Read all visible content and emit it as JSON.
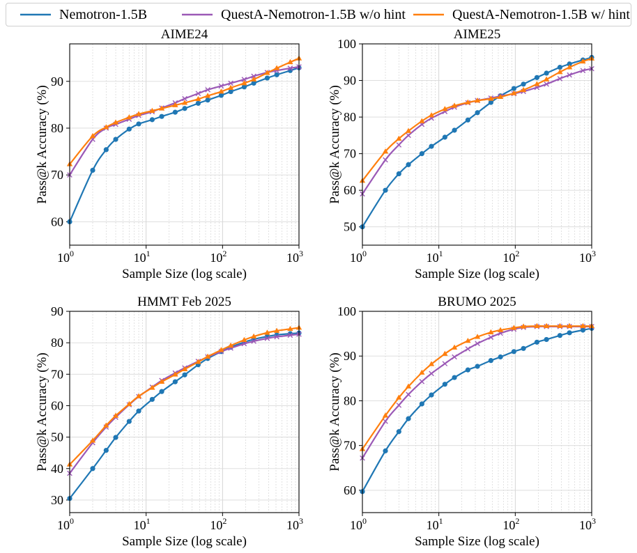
{
  "legend": [
    {
      "name": "Nemotron-1.5B",
      "color": "#1f77b4",
      "marker": "circle"
    },
    {
      "name": "QuestA-Nemotron-1.5B w/o hint",
      "color": "#9b59b6",
      "marker": "x"
    },
    {
      "name": "QuestA-Nemotron-1.5B w/ hint",
      "color": "#ff7f0e",
      "marker": "triangle"
    }
  ],
  "chart_data": [
    {
      "type": "line",
      "title": "AIME24",
      "xlabel": "Sample Size (log scale)",
      "ylabel": "Pass@k Accuracy (%)",
      "xscale": "log",
      "xlim": [
        1,
        1000
      ],
      "ylim": [
        55,
        98
      ],
      "yticks": [
        60,
        70,
        80,
        90
      ],
      "x": [
        1,
        2,
        3,
        4,
        6,
        8,
        12,
        16,
        24,
        32,
        48,
        64,
        96,
        128,
        192,
        256,
        384,
        512,
        768,
        1000
      ],
      "series": [
        {
          "name": "Nemotron-1.5B",
          "values": [
            60.0,
            71.0,
            75.4,
            77.6,
            79.8,
            80.9,
            81.8,
            82.5,
            83.4,
            84.2,
            85.3,
            86.0,
            87.0,
            87.8,
            88.8,
            89.6,
            90.7,
            91.4,
            92.3,
            92.9
          ]
        },
        {
          "name": "QuestA-Nemotron-1.5B w/o hint",
          "values": [
            70.0,
            77.6,
            80.0,
            80.8,
            81.9,
            82.7,
            83.5,
            84.3,
            85.4,
            86.3,
            87.4,
            88.2,
            89.0,
            89.6,
            90.4,
            91.1,
            91.9,
            92.3,
            92.8,
            93.1
          ]
        },
        {
          "name": "QuestA-Nemotron-1.5B w/ hint",
          "values": [
            72.3,
            78.3,
            80.2,
            81.2,
            82.3,
            83.0,
            83.7,
            84.2,
            84.9,
            85.4,
            86.2,
            86.9,
            87.8,
            88.6,
            89.6,
            90.4,
            91.8,
            92.8,
            94.1,
            94.9
          ]
        }
      ]
    },
    {
      "type": "line",
      "title": "AIME25",
      "xlabel": "Sample Size (log scale)",
      "ylabel": "Pass@k Accuracy (%)",
      "xscale": "log",
      "xlim": [
        1,
        1000
      ],
      "ylim": [
        45,
        100
      ],
      "yticks": [
        50,
        60,
        70,
        80,
        90,
        100
      ],
      "x": [
        1,
        2,
        3,
        4,
        6,
        8,
        12,
        16,
        24,
        32,
        48,
        64,
        96,
        128,
        192,
        256,
        384,
        512,
        768,
        1000
      ],
      "series": [
        {
          "name": "Nemotron-1.5B",
          "values": [
            50.0,
            60.0,
            64.5,
            67.0,
            70.0,
            72.0,
            74.5,
            76.4,
            79.2,
            81.2,
            84.0,
            85.8,
            87.8,
            89.0,
            90.8,
            92.0,
            93.6,
            94.5,
            95.6,
            96.3
          ]
        },
        {
          "name": "QuestA-Nemotron-1.5B w/o hint",
          "values": [
            59.0,
            68.3,
            72.4,
            75.0,
            78.0,
            79.7,
            81.5,
            82.7,
            83.9,
            84.5,
            85.2,
            85.7,
            86.4,
            87.0,
            88.1,
            89.0,
            90.5,
            91.5,
            92.7,
            93.2
          ]
        },
        {
          "name": "QuestA-Nemotron-1.5B w/ hint",
          "values": [
            62.6,
            70.6,
            74.1,
            76.2,
            78.9,
            80.5,
            82.2,
            83.1,
            84.0,
            84.5,
            85.0,
            85.5,
            86.5,
            87.4,
            89.0,
            90.3,
            92.3,
            93.6,
            95.2,
            96.0
          ]
        }
      ]
    },
    {
      "type": "line",
      "title": "HMMT Feb 2025",
      "xlabel": "Sample Size (log scale)",
      "ylabel": "Pass@k Accuracy (%)",
      "xscale": "log",
      "xlim": [
        1,
        1000
      ],
      "ylim": [
        26,
        90
      ],
      "yticks": [
        30,
        40,
        50,
        60,
        70,
        80,
        90
      ],
      "x": [
        1,
        2,
        3,
        4,
        6,
        8,
        12,
        16,
        24,
        32,
        48,
        64,
        96,
        128,
        192,
        256,
        384,
        512,
        768,
        1000
      ],
      "series": [
        {
          "name": "Nemotron-1.5B",
          "values": [
            30.5,
            40.0,
            45.8,
            49.9,
            55.0,
            58.3,
            62.0,
            64.5,
            67.6,
            69.8,
            73.0,
            75.0,
            77.2,
            78.6,
            80.2,
            81.1,
            82.0,
            82.5,
            82.9,
            83.1
          ]
        },
        {
          "name": "QuestA-Nemotron-1.5B w/o hint",
          "values": [
            38.5,
            48.2,
            53.2,
            56.3,
            60.3,
            62.9,
            65.9,
            68.0,
            70.4,
            72.0,
            74.1,
            75.5,
            77.2,
            78.3,
            79.7,
            80.5,
            81.4,
            81.9,
            82.4,
            82.7
          ]
        },
        {
          "name": "QuestA-Nemotron-1.5B w/ hint",
          "values": [
            41.3,
            48.9,
            53.7,
            56.8,
            60.5,
            63.0,
            65.7,
            67.6,
            69.9,
            71.6,
            73.9,
            75.6,
            77.7,
            79.1,
            80.9,
            82.0,
            83.2,
            83.8,
            84.4,
            84.8
          ]
        }
      ]
    },
    {
      "type": "line",
      "title": "BRUMO 2025",
      "xlabel": "Sample Size (log scale)",
      "ylabel": "Pass@k Accuracy (%)",
      "xscale": "log",
      "xlim": [
        1,
        1000
      ],
      "ylim": [
        55,
        100
      ],
      "yticks": [
        60,
        70,
        80,
        90,
        100
      ],
      "x": [
        1,
        2,
        3,
        4,
        6,
        8,
        12,
        16,
        24,
        32,
        48,
        64,
        96,
        128,
        192,
        256,
        384,
        512,
        768,
        1000
      ],
      "series": [
        {
          "name": "Nemotron-1.5B",
          "values": [
            59.7,
            68.8,
            73.1,
            76.0,
            79.3,
            81.3,
            83.7,
            85.2,
            86.9,
            87.7,
            89.0,
            89.8,
            91.0,
            91.7,
            93.1,
            93.7,
            94.6,
            95.2,
            95.8,
            96.2
          ]
        },
        {
          "name": "QuestA-Nemotron-1.5B w/o hint",
          "values": [
            67.2,
            75.4,
            79.0,
            81.4,
            84.3,
            86.1,
            88.3,
            89.8,
            91.6,
            92.8,
            94.2,
            95.1,
            96.0,
            96.4,
            96.6,
            96.6,
            96.6,
            96.6,
            96.6,
            96.6
          ]
        },
        {
          "name": "QuestA-Nemotron-1.5B w/ hint",
          "values": [
            69.2,
            76.7,
            80.7,
            83.2,
            86.3,
            88.2,
            90.5,
            91.9,
            93.4,
            94.3,
            95.3,
            95.8,
            96.3,
            96.6,
            96.7,
            96.7,
            96.7,
            96.7,
            96.7,
            96.7
          ]
        }
      ]
    }
  ]
}
